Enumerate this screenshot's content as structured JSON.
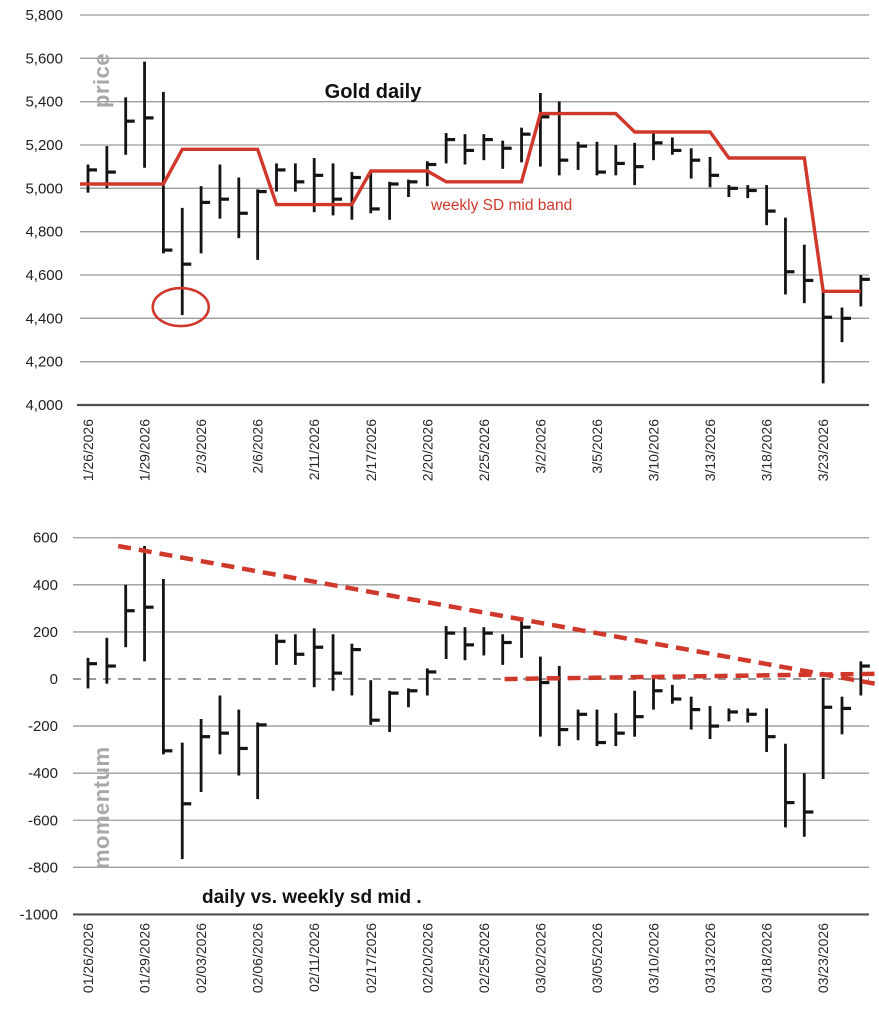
{
  "price_chart": {
    "title": "Gold daily",
    "y_axis_label": "price",
    "band_label": "weekly SD mid band"
  },
  "momentum_chart": {
    "title": "daily vs. weekly sd mid .",
    "y_axis_label": "momentum"
  },
  "colors": {
    "red": "#d0382c",
    "bar": "#141414",
    "grid": "#9b9b9b",
    "axis": "#4f4f4f",
    "gray_label": "#a8a8a8",
    "zero_dash": "#8c8c8c",
    "tick_text": "#1f1f1f"
  },
  "chart_data": [
    {
      "type": "hlc-bar",
      "title": "Gold daily",
      "ylabel": "price",
      "legend": [
        "weekly SD mid band"
      ],
      "grid": true,
      "ylim": [
        4000,
        5800
      ],
      "y_ticks": [
        "5,800",
        "5,600",
        "5,400",
        "5,200",
        "5,000",
        "4,800",
        "4,600",
        "4,400",
        "4,200",
        "4,000"
      ],
      "y_tick_values": [
        5800,
        5600,
        5400,
        5200,
        5000,
        4800,
        4600,
        4400,
        4200,
        4000
      ],
      "dates": [
        "1/26/2026",
        "1/27/2026",
        "1/28/2026",
        "1/29/2026",
        "1/30/2026",
        "2/2/2026",
        "2/3/2026",
        "2/4/2026",
        "2/5/2026",
        "2/6/2026",
        "2/9/2026",
        "2/10/2026",
        "2/11/2026",
        "2/12/2026",
        "2/13/2026",
        "2/17/2026",
        "2/18/2026",
        "2/19/2026",
        "2/20/2026",
        "2/23/2026",
        "2/24/2026",
        "2/25/2026",
        "2/26/2026",
        "2/27/2026",
        "3/2/2026",
        "3/3/2026",
        "3/4/2026",
        "3/5/2026",
        "3/6/2026",
        "3/9/2026",
        "3/10/2026",
        "3/11/2026",
        "3/12/2026",
        "3/13/2026",
        "3/16/2026",
        "3/17/2026",
        "3/18/2026",
        "3/19/2026",
        "3/20/2026",
        "3/23/2026",
        "3/24/2026",
        "3/25/2026"
      ],
      "x_tick_labels": [
        "1/26/2026",
        "1/29/2026",
        "2/3/2026",
        "2/6/2026",
        "2/11/2026",
        "2/17/2026",
        "2/20/2026",
        "2/25/2026",
        "3/2/2026",
        "3/5/2026",
        "3/10/2026",
        "3/13/2026",
        "3/18/2026",
        "3/23/2026"
      ],
      "x_tick_indices": [
        0,
        3,
        6,
        9,
        12,
        15,
        18,
        21,
        24,
        27,
        30,
        33,
        36,
        39
      ],
      "bars_hlc": [
        [
          5110,
          4980,
          5085
        ],
        [
          5195,
          5000,
          5075
        ],
        [
          5420,
          5155,
          5310
        ],
        [
          5585,
          5095,
          5325
        ],
        [
          5445,
          4700,
          4715
        ],
        [
          4910,
          4415,
          4650
        ],
        [
          5010,
          4700,
          4935
        ],
        [
          5110,
          4860,
          4950
        ],
        [
          5050,
          4770,
          4885
        ],
        [
          4995,
          4670,
          4985
        ],
        [
          5115,
          4985,
          5085
        ],
        [
          5115,
          4985,
          5030
        ],
        [
          5140,
          4890,
          5060
        ],
        [
          5115,
          4875,
          4950
        ],
        [
          5075,
          4855,
          5050
        ],
        [
          5075,
          4885,
          4905
        ],
        [
          5030,
          4855,
          5020
        ],
        [
          5040,
          4960,
          5030
        ],
        [
          5125,
          5010,
          5110
        ],
        [
          5255,
          5115,
          5225
        ],
        [
          5250,
          5110,
          5175
        ],
        [
          5250,
          5130,
          5225
        ],
        [
          5220,
          5090,
          5185
        ],
        [
          5280,
          5120,
          5250
        ],
        [
          5440,
          5100,
          5330
        ],
        [
          5400,
          5060,
          5130
        ],
        [
          5215,
          5085,
          5195
        ],
        [
          5215,
          5060,
          5075
        ],
        [
          5200,
          5060,
          5115
        ],
        [
          5210,
          5015,
          5100
        ],
        [
          5260,
          5130,
          5210
        ],
        [
          5235,
          5155,
          5175
        ],
        [
          5185,
          5045,
          5130
        ],
        [
          5145,
          5005,
          5060
        ],
        [
          5015,
          4960,
          5000
        ],
        [
          5015,
          4955,
          4990
        ],
        [
          5015,
          4830,
          4895
        ],
        [
          4865,
          4510,
          4615
        ],
        [
          4740,
          4470,
          4575
        ],
        [
          4530,
          4100,
          4405
        ],
        [
          4450,
          4290,
          4400
        ],
        [
          4600,
          4455,
          4580
        ]
      ],
      "weekly_sd_mid": [
        5020,
        5020,
        5020,
        5020,
        5020,
        5180,
        5180,
        5180,
        5180,
        5180,
        4925,
        4925,
        4925,
        4925,
        4925,
        5080,
        5080,
        5080,
        5080,
        5030,
        5030,
        5030,
        5030,
        5030,
        5345,
        5345,
        5345,
        5345,
        5345,
        5260,
        5260,
        5260,
        5260,
        5260,
        5140,
        5140,
        5140,
        5140,
        5140,
        4525,
        4525,
        4525
      ],
      "annotation": {
        "shape": "ellipse",
        "date": "2/2/2026",
        "marks": "low",
        "value": 4415
      }
    },
    {
      "type": "hlc-bar",
      "title": "daily vs. weekly sd mid .",
      "ylabel": "momentum",
      "grid": true,
      "ylim": [
        -1000,
        600
      ],
      "y_ticks": [
        "600",
        "400",
        "200",
        "0",
        "-200",
        "-400",
        "-600",
        "-800",
        "-1000"
      ],
      "y_tick_values": [
        600,
        400,
        200,
        0,
        -200,
        -400,
        -600,
        -800,
        -1000
      ],
      "dates": [
        "01/26/2026",
        "01/27/2026",
        "01/28/2026",
        "01/29/2026",
        "01/30/2026",
        "02/02/2026",
        "02/03/2026",
        "02/04/2026",
        "02/05/2026",
        "02/06/2026",
        "02/09/2026",
        "02/10/2026",
        "02/11/2026",
        "02/12/2026",
        "02/13/2026",
        "02/17/2026",
        "02/18/2026",
        "02/19/2026",
        "02/20/2026",
        "02/23/2026",
        "02/24/2026",
        "02/25/2026",
        "02/26/2026",
        "02/27/2026",
        "03/02/2026",
        "03/03/2026",
        "03/04/2026",
        "03/05/2026",
        "03/06/2026",
        "03/09/2026",
        "03/10/2026",
        "03/11/2026",
        "03/12/2026",
        "03/13/2026",
        "03/16/2026",
        "03/17/2026",
        "03/18/2026",
        "03/19/2026",
        "03/20/2026",
        "03/23/2026",
        "03/24/2026",
        "03/25/2026"
      ],
      "x_tick_labels": [
        "01/26/2026",
        "01/29/2026",
        "02/03/2026",
        "02/06/2026",
        "02/11/2026",
        "02/17/2026",
        "02/20/2026",
        "02/25/2026",
        "03/02/2026",
        "03/05/2026",
        "03/10/2026",
        "03/13/2026",
        "03/18/2026",
        "03/23/2026"
      ],
      "x_tick_indices": [
        0,
        3,
        6,
        9,
        12,
        15,
        18,
        21,
        24,
        27,
        30,
        33,
        36,
        39
      ],
      "bars_hlc": [
        [
          90,
          -40,
          65
        ],
        [
          175,
          -20,
          55
        ],
        [
          400,
          135,
          290
        ],
        [
          565,
          75,
          305
        ],
        [
          425,
          -320,
          -305
        ],
        [
          -270,
          -765,
          -530
        ],
        [
          -170,
          -480,
          -245
        ],
        [
          -70,
          -320,
          -230
        ],
        [
          -130,
          -410,
          -295
        ],
        [
          -185,
          -510,
          -195
        ],
        [
          190,
          60,
          160
        ],
        [
          190,
          60,
          105
        ],
        [
          215,
          -35,
          135
        ],
        [
          190,
          -50,
          25
        ],
        [
          150,
          -70,
          125
        ],
        [
          -5,
          -195,
          -175
        ],
        [
          -50,
          -225,
          -60
        ],
        [
          -40,
          -120,
          -50
        ],
        [
          45,
          -70,
          30
        ],
        [
          225,
          85,
          195
        ],
        [
          220,
          80,
          145
        ],
        [
          220,
          100,
          195
        ],
        [
          190,
          60,
          155
        ],
        [
          250,
          90,
          220
        ],
        [
          95,
          -245,
          -15
        ],
        [
          55,
          -285,
          -215
        ],
        [
          -130,
          -260,
          -150
        ],
        [
          -130,
          -285,
          -270
        ],
        [
          -145,
          -285,
          -230
        ],
        [
          -50,
          -245,
          -160
        ],
        [
          0,
          -130,
          -50
        ],
        [
          -25,
          -105,
          -85
        ],
        [
          -75,
          -215,
          -130
        ],
        [
          -115,
          -255,
          -200
        ],
        [
          -125,
          -180,
          -140
        ],
        [
          -125,
          -185,
          -150
        ],
        [
          -125,
          -310,
          -245
        ],
        [
          -275,
          -630,
          -525
        ],
        [
          -400,
          -670,
          -565
        ],
        [
          5,
          -425,
          -120
        ],
        [
          -75,
          -235,
          -125
        ],
        [
          75,
          -70,
          55
        ]
      ],
      "zero_line": true,
      "trendlines": [
        {
          "style": "dashed",
          "x1_index": 1.6,
          "v1": 565,
          "x2_index": 41.75,
          "v2": -20
        },
        {
          "style": "dashed",
          "x1_index": 22.1,
          "v1": 0,
          "x2_index": 41.75,
          "v2": 22
        }
      ]
    }
  ]
}
